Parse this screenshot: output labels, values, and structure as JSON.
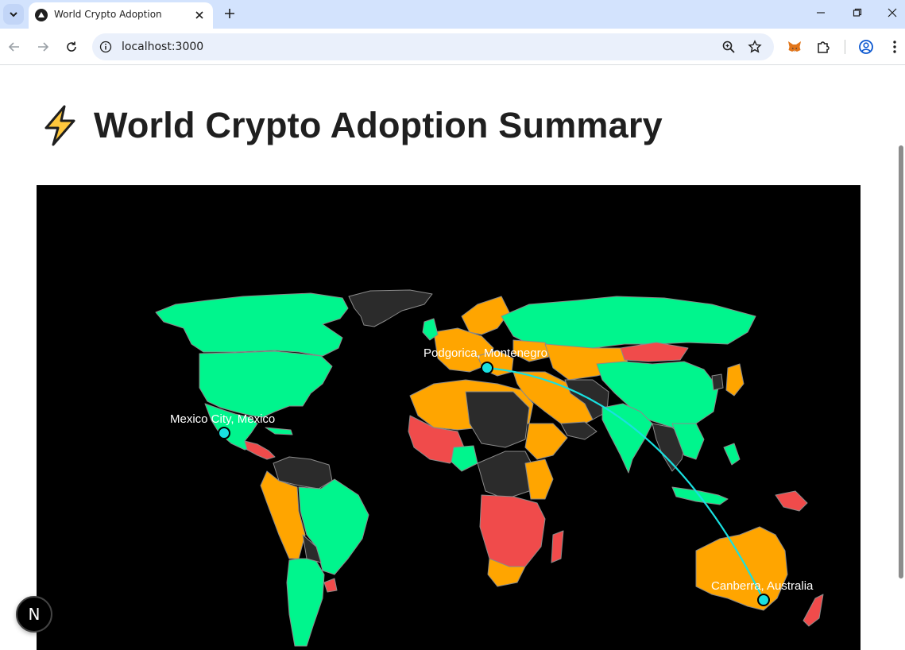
{
  "browser": {
    "tab_title": "World Crypto Adoption",
    "url": "localhost:3000"
  },
  "page": {
    "title": "World Crypto Adoption Summary",
    "title_icon": "lightning-bolt-icon"
  },
  "map": {
    "colors": {
      "high": "#00f58d",
      "medium": "#ffa500",
      "low": "#f04b4b",
      "none": "#2b2b2b",
      "border": "#8a8a8a",
      "route": "#19e0e0"
    },
    "cities": [
      {
        "label": "Mexico City, Mexico"
      },
      {
        "label": "Podgorica, Montenegro"
      },
      {
        "label": "Canberra, Australia"
      }
    ]
  },
  "next_badge": "N"
}
